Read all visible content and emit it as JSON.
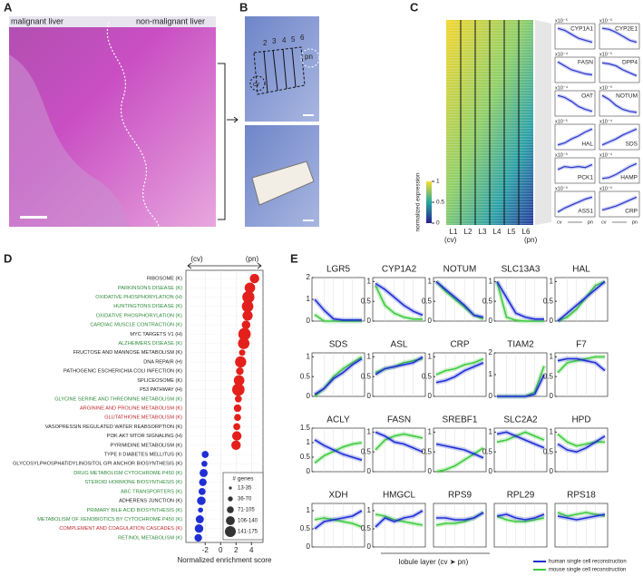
{
  "panel_labels": [
    "A",
    "B",
    "C",
    "D",
    "E"
  ],
  "panel_a": {
    "labels": [
      "malignant liver",
      "non-malignant liver"
    ]
  },
  "panel_b": {
    "layer_numbers": [
      "2",
      "3",
      "4",
      "5",
      "6"
    ],
    "cv": "cv",
    "pn": "pn"
  },
  "panel_c": {
    "layers": [
      "L1",
      "L2",
      "L3",
      "L4",
      "L5",
      "L6"
    ],
    "cv_label": "(cv)",
    "pn_label": "(pn)",
    "colorbar_label": "normalized expression",
    "colorbar_ticks": [
      0,
      0.5,
      1
    ],
    "mini_ylim": [
      0,
      1
    ],
    "mini_x_labels": [
      "cv",
      "pn"
    ],
    "genes": [
      {
        "name": "CYP1A1",
        "scale": "x10⁻⁵",
        "values": [
          0.9,
          0.8,
          0.6,
          0.4,
          0.3,
          0.2
        ]
      },
      {
        "name": "CYP2E1",
        "scale": "x10⁻³",
        "values": [
          0.9,
          0.85,
          0.7,
          0.5,
          0.3,
          0.2
        ]
      },
      {
        "name": "FASN",
        "scale": "x10⁻⁴",
        "values": [
          0.9,
          0.7,
          0.5,
          0.4,
          0.3,
          0.25
        ]
      },
      {
        "name": "DPP4",
        "scale": "x10⁻⁵",
        "values": [
          0.85,
          0.8,
          0.7,
          0.5,
          0.35,
          0.2
        ]
      },
      {
        "name": "OAT",
        "scale": "x10⁻⁴",
        "values": [
          0.9,
          0.8,
          0.6,
          0.35,
          0.2,
          0.1
        ]
      },
      {
        "name": "NOTUM",
        "scale": "x10⁻⁵",
        "values": [
          0.9,
          0.7,
          0.4,
          0.2,
          0.1,
          0.05
        ]
      },
      {
        "name": "HAL",
        "scale": "x10⁻⁵",
        "values": [
          0.1,
          0.2,
          0.4,
          0.55,
          0.75,
          0.9
        ]
      },
      {
        "name": "SDS",
        "scale": "x10⁻⁴",
        "values": [
          0.1,
          0.25,
          0.4,
          0.6,
          0.75,
          0.9
        ]
      },
      {
        "name": "PCK1",
        "scale": "x10⁻³",
        "values": [
          0.55,
          0.7,
          0.65,
          0.7,
          0.65,
          0.8
        ]
      },
      {
        "name": "HAMP",
        "scale": "x10⁻⁴",
        "values": [
          0.1,
          0.15,
          0.3,
          0.5,
          0.7,
          0.85
        ]
      },
      {
        "name": "ASS1",
        "scale": "x10⁻³",
        "values": [
          0.1,
          0.3,
          0.45,
          0.6,
          0.75,
          0.85
        ]
      },
      {
        "name": "CRP",
        "scale": "x10⁻³",
        "values": [
          0.2,
          0.3,
          0.4,
          0.55,
          0.7,
          0.85
        ]
      }
    ]
  },
  "chart_data": [
    {
      "type": "bubble",
      "annotations": [
        "(cv)",
        "(pn)"
      ],
      "xlabel": "Normalized enrichment score",
      "xlim": [
        -4.5,
        5.5
      ],
      "xticks": [
        -2,
        0,
        2,
        4
      ],
      "grid": true,
      "positive_color": "#e3201b",
      "negative_color": "#1f2fd4",
      "legend_title": "# genes",
      "size_legend": [
        "13-35",
        "36-70",
        "71-105",
        "106-140",
        "141-175"
      ],
      "categories": [
        "RIBOSOME (K)",
        "PARKINSONS DISEASE (K)",
        "OXIDATIVE PHOSPHORYLATION (H)",
        "HUNTINGTONS DISEASE (K)",
        "OXIDATIVE PHOSPHORYLATION (K)",
        "CARDIAC MUSCLE CONTRACTION (K)",
        "MYC TARGETS V1 (H)",
        "ALZHEIMERS DISEASE (K)",
        "FRUCTOSE AND MANNOSE METABOLISM (K)",
        "DNA REPAIR (H)",
        "PATHOGENIC ESCHERICHIA COLI INFECTION (K)",
        "SPLICEOSOME (K)",
        "P53 PATHWAY (H)",
        "GLYCINE SERINE AND THREONINE METABOLISM (K)",
        "ARGININE AND PROLINE METABOLISM (K)",
        "GLUTATHIONE METABOLISM (K)",
        "VASOPRESSIN REGULATED WATER REABSORPTION (K)",
        "PI3K AKT MTOR SIGNALING (H)",
        "PYRIMIDINE METABOLISM (K)",
        "TYPE II DIABETES MELLITUS (K)",
        "GLYCOSYLPHOSPHATIDYLINOSITOL GPI ANCHOR BIOSYNTHESIS (K)",
        "DRUG METABOLISM CYTOCHROME P450 (K)",
        "STEROID HORMONE BIOSYNTHESIS (K)",
        "ABC TRANSPORTERS (K)",
        "ADHERENS JUNCTION (K)",
        "PRIMARY BILE ACID BIOSYNTHESIS (K)",
        "METABOLISM OF XENOBIOTICS BY CYTOCHROME P450 (K)",
        "COMPLEMENT AND COAGULATION CASCADES (K)",
        "RETINOL METABOLISM (K)"
      ],
      "label_colors": [
        "#222222",
        "#2e8b3a",
        "#2e8b3a",
        "#2e8b3a",
        "#2e8b3a",
        "#2e8b3a",
        "#222222",
        "#2e8b3a",
        "#222222",
        "#222222",
        "#222222",
        "#222222",
        "#222222",
        "#2e8b3a",
        "#c0282d",
        "#c0282d",
        "#222222",
        "#222222",
        "#222222",
        "#222222",
        "#222222",
        "#2e8b3a",
        "#2e8b3a",
        "#2e8b3a",
        "#222222",
        "#2e8b3a",
        "#2e8b3a",
        "#c0282d",
        "#2e8b3a"
      ],
      "values": [
        4.4,
        3.8,
        3.6,
        3.5,
        3.5,
        3.3,
        3.1,
        3.0,
        2.8,
        2.6,
        2.5,
        2.4,
        2.3,
        2.3,
        2.2,
        2.2,
        2.1,
        2.1,
        2.0,
        -2.0,
        -2.1,
        -2.2,
        -2.3,
        -2.4,
        -2.5,
        -2.6,
        -2.7,
        -2.8,
        -2.9
      ],
      "sizes": [
        90,
        120,
        170,
        150,
        110,
        70,
        180,
        150,
        30,
        140,
        50,
        120,
        180,
        40,
        50,
        40,
        40,
        90,
        90,
        40,
        25,
        60,
        50,
        40,
        70,
        15,
        60,
        70,
        50
      ]
    },
    {
      "type": "small_multiples",
      "xlabel": "lobule layer (cv ➤ pn)",
      "legend": [
        {
          "name": "human single cell reconstruction",
          "color": "#1f2fd4"
        },
        {
          "name": "mouse single cell reconstruction",
          "color": "#3fcb3f"
        }
      ],
      "panels": [
        {
          "title": "LGR5",
          "ylim": [
            0,
            2
          ],
          "yticks": [
            0,
            1,
            2
          ],
          "series": [
            {
              "values": [
                1,
                0.5,
                0.1,
                0.05,
                0.05,
                0.05
              ]
            },
            {
              "values": [
                0.3,
                0,
                0,
                0,
                0,
                0
              ]
            }
          ]
        },
        {
          "title": "CYP1A2",
          "ylim": [
            0,
            1.1
          ],
          "yticks": [
            0,
            0.5,
            1
          ],
          "series": [
            {
              "values": [
                0.95,
                0.8,
                0.6,
                0.4,
                0.25,
                0.15
              ]
            },
            {
              "values": [
                0.9,
                0.4,
                0.2,
                0.1,
                0.05,
                0.05
              ]
            }
          ]
        },
        {
          "title": "NOTUM",
          "ylim": [
            0,
            1.1
          ],
          "yticks": [
            0,
            0.5,
            1
          ],
          "series": [
            {
              "values": [
                1,
                0.8,
                0.6,
                0.4,
                0.15,
                0.1
              ]
            },
            {
              "values": [
                1,
                0.75,
                0.55,
                0.35,
                0.15,
                0.05
              ]
            }
          ]
        },
        {
          "title": "SLC13A3",
          "ylim": [
            0,
            1.1
          ],
          "yticks": [
            0,
            0.5,
            1
          ],
          "series": [
            {
              "values": [
                1,
                0.6,
                0.2,
                0.1,
                0.05,
                0.05
              ]
            },
            {
              "values": [
                1,
                0.1,
                0.02,
                0,
                0,
                0
              ]
            }
          ]
        },
        {
          "title": "HAL",
          "ylim": [
            0,
            1.1
          ],
          "yticks": [
            0,
            0.5,
            1
          ],
          "series": [
            {
              "values": [
                0,
                0.2,
                0.4,
                0.6,
                0.8,
                1
              ]
            },
            {
              "values": [
                0,
                0.1,
                0.3,
                0.6,
                0.9,
                1
              ]
            }
          ]
        },
        {
          "title": "SDS",
          "ylim": [
            0,
            1.1
          ],
          "yticks": [
            0,
            0.5,
            1
          ],
          "series": [
            {
              "values": [
                0.05,
                0.2,
                0.45,
                0.6,
                0.8,
                0.95
              ]
            },
            {
              "values": [
                0,
                0.2,
                0.5,
                0.7,
                0.85,
                1
              ]
            }
          ]
        },
        {
          "title": "ASL",
          "ylim": [
            0,
            1.1
          ],
          "yticks": [
            0,
            0.5,
            1
          ],
          "series": [
            {
              "values": [
                0.55,
                0.7,
                0.75,
                0.8,
                0.85,
                1
              ]
            },
            {
              "values": [
                0.6,
                0.7,
                0.75,
                0.85,
                0.9,
                0.95
              ]
            }
          ]
        },
        {
          "title": "CRP",
          "ylim": [
            0,
            1.1
          ],
          "yticks": [
            0,
            0.5,
            1
          ],
          "series": [
            {
              "values": [
                0.35,
                0.4,
                0.5,
                0.65,
                0.75,
                0.85
              ]
            },
            {
              "values": [
                0.55,
                0.65,
                0.7,
                0.8,
                0.85,
                0.95
              ]
            }
          ]
        },
        {
          "title": "TIAM2",
          "ylim": [
            0,
            2
          ],
          "yticks": [
            0,
            1,
            2
          ],
          "series": [
            {
              "values": [
                0,
                0,
                0,
                0,
                0.1,
                1
              ]
            },
            {
              "values": [
                0,
                0,
                0,
                0,
                0.2,
                1.4
              ]
            }
          ]
        },
        {
          "title": "F7",
          "ylim": [
            0,
            1.1
          ],
          "yticks": [
            0,
            0.5,
            1
          ],
          "series": [
            {
              "values": [
                0.9,
                0.95,
                0.95,
                0.9,
                0.85,
                0.65
              ]
            },
            {
              "values": [
                0.6,
                0.85,
                0.9,
                0.95,
                1,
                1
              ]
            }
          ]
        },
        {
          "title": "ACLY",
          "ylim": [
            0,
            1.5
          ],
          "yticks": [
            0,
            0.5,
            1,
            1.5
          ],
          "series": [
            {
              "values": [
                1.1,
                0.9,
                0.75,
                0.6,
                0.5,
                0.4
              ]
            },
            {
              "values": [
                0.3,
                0.55,
                0.7,
                0.85,
                0.95,
                1
              ]
            }
          ]
        },
        {
          "title": "FASN",
          "ylim": [
            0,
            1.1
          ],
          "yticks": [
            0,
            0.5,
            1
          ],
          "series": [
            {
              "values": [
                1,
                0.9,
                0.75,
                0.7,
                0.6,
                0.5
              ]
            },
            {
              "values": [
                0.55,
                0.8,
                0.9,
                0.95,
                0.9,
                0.85
              ]
            }
          ]
        },
        {
          "title": "SREBF1",
          "ylim": [
            0,
            1.1
          ],
          "yticks": [
            0,
            0.5,
            1
          ],
          "series": [
            {
              "values": [
                0.7,
                0.65,
                0.6,
                0.55,
                0.45,
                0.35
              ]
            },
            {
              "values": [
                0,
                0.05,
                0.15,
                0.3,
                0.45,
                0.6
              ]
            }
          ]
        },
        {
          "title": "SLC2A2",
          "ylim": [
            0,
            1.1
          ],
          "yticks": [
            0,
            0.5,
            1
          ],
          "series": [
            {
              "values": [
                0.95,
                1,
                0.9,
                0.8,
                0.7,
                0.6
              ]
            },
            {
              "values": [
                0.75,
                0.8,
                0.9,
                1,
                0.9,
                0.8
              ]
            }
          ]
        },
        {
          "title": "HPD",
          "ylim": [
            0,
            1.1
          ],
          "yticks": [
            0,
            0.5,
            1
          ],
          "series": [
            {
              "values": [
                0.7,
                0.55,
                0.5,
                0.6,
                0.75,
                0.9
              ]
            },
            {
              "values": [
                0.95,
                0.75,
                0.65,
                0.7,
                0.75,
                0.75
              ]
            }
          ]
        },
        {
          "title": "XDH",
          "ylim": [
            0,
            1.2
          ],
          "yticks": [
            0,
            0.5,
            1
          ],
          "series": [
            {
              "values": [
                0.5,
                0.7,
                0.75,
                0.8,
                0.85,
                1
              ]
            },
            {
              "values": [
                0.75,
                0.8,
                0.75,
                0.7,
                0.65,
                0.55
              ]
            }
          ]
        },
        {
          "title": "HMGCL",
          "ylim": [
            0,
            1.2
          ],
          "yticks": [
            0,
            0.5,
            1
          ],
          "series": [
            {
              "values": [
                0.55,
                0.8,
                0.7,
                0.8,
                0.85,
                1
              ]
            },
            {
              "values": [
                0.9,
                0.85,
                0.75,
                0.7,
                0.65,
                0.6
              ]
            }
          ]
        },
        {
          "title": "RPS9",
          "ylim": [
            0,
            1.2
          ],
          "series": [
            {
              "values": [
                0.8,
                0.8,
                0.75,
                0.75,
                0.8,
                0.95
              ]
            },
            {
              "values": [
                0.6,
                0.65,
                0.65,
                0.7,
                0.8,
                0.95
              ]
            }
          ]
        },
        {
          "title": "RPL29",
          "ylim": [
            0,
            1.2
          ],
          "series": [
            {
              "values": [
                0.85,
                0.9,
                0.8,
                0.75,
                0.8,
                0.9
              ]
            },
            {
              "values": [
                0.85,
                0.75,
                0.7,
                0.7,
                0.75,
                0.8
              ]
            }
          ]
        },
        {
          "title": "RPS18",
          "ylim": [
            0,
            1.2
          ],
          "series": [
            {
              "values": [
                0.85,
                0.8,
                0.75,
                0.8,
                0.85,
                0.9
              ]
            },
            {
              "values": [
                0.95,
                0.85,
                0.9,
                0.95,
                0.9,
                0.85
              ]
            }
          ]
        }
      ]
    }
  ]
}
